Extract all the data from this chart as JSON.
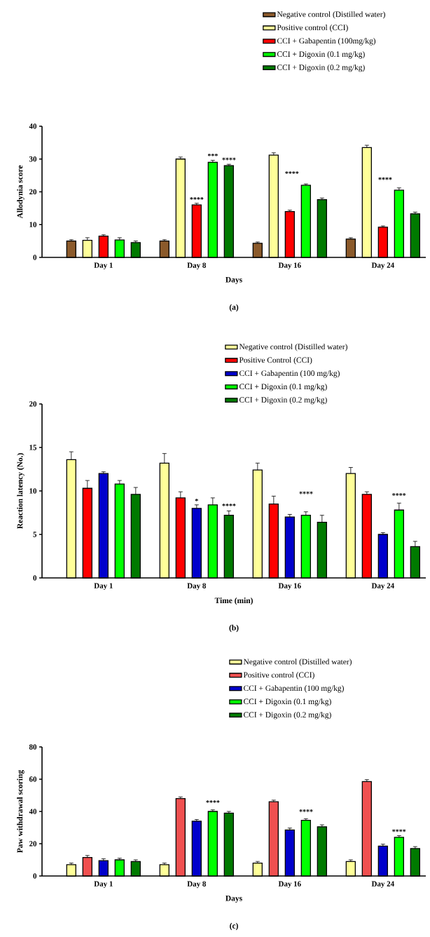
{
  "chart_data": [
    {
      "type": "bar",
      "xlabel": "Days",
      "ylabel": "Allodynia score",
      "categories": [
        "Day 1",
        "Day 8",
        "Day 16",
        "Day 24"
      ],
      "ylim": [
        0,
        40
      ],
      "yticks": [
        0,
        10,
        20,
        30,
        40
      ],
      "legend": "top right",
      "series": [
        {
          "name": "Negative control (Distilled water)",
          "color": "#8b5a2b",
          "values": [
            5,
            5,
            4.3,
            5.6
          ],
          "errors": [
            0.4,
            0.4,
            0.4,
            0.4
          ]
        },
        {
          "name": "Positive control (CCI)",
          "color": "#ffff99",
          "values": [
            5.2,
            30,
            31.2,
            33.5
          ],
          "errors": [
            0.8,
            0.6,
            0.7,
            0.7
          ]
        },
        {
          "name": "CCI + Gabapentin (100mg/kg)",
          "color": "#ff0000",
          "values": [
            6.5,
            16,
            14,
            9.2
          ],
          "errors": [
            0.4,
            0.5,
            0.4,
            0.4
          ]
        },
        {
          "name": "CCI + Digoxin (0.1 mg/kg)",
          "color": "#00ff00",
          "values": [
            5.3,
            29,
            22,
            20.5
          ],
          "errors": [
            0.7,
            0.6,
            0.4,
            0.7
          ]
        },
        {
          "name": "CCI + Digoxin (0.2 mg/kg)",
          "color": "#007a00",
          "values": [
            4.5,
            28,
            17.6,
            13.3
          ],
          "errors": [
            0.5,
            0.4,
            0.5,
            0.5
          ]
        }
      ],
      "annotations": [
        {
          "text": "****",
          "x": "Day 8",
          "y": 16
        },
        "***",
        "****",
        "****",
        "****",
        "(a)"
      ]
    },
    {
      "type": "bar",
      "xlabel": "Time (min)",
      "ylabel": "Reaction latency (No.)",
      "categories": [
        "Day 1",
        "Day 8",
        "Day 16",
        "Day 24"
      ],
      "ylim": [
        0,
        20
      ],
      "yticks": [
        0,
        5,
        10,
        15,
        20
      ],
      "legend": "top right",
      "series": [
        {
          "name": "Negative control (Distilled water)",
          "color": "#ffff99",
          "values": [
            13.6,
            13.2,
            12.4,
            12.0
          ],
          "errors": [
            0.9,
            1.1,
            0.8,
            0.7
          ]
        },
        {
          "name": "Positive Control (CCI)",
          "color": "#ff0000",
          "values": [
            10.3,
            9.2,
            8.5,
            9.6
          ],
          "errors": [
            0.9,
            0.7,
            0.9,
            0.3
          ]
        },
        {
          "name": "CCI + Gabapentin (100 mg/kg)",
          "color": "#0000cc",
          "values": [
            12.0,
            8.0,
            7.0,
            5.0
          ],
          "errors": [
            0.2,
            0.4,
            0.3,
            0.2
          ]
        },
        {
          "name": "CCI + Digoxin (0.1 mg/kg)",
          "color": "#00ff00",
          "values": [
            10.8,
            8.4,
            7.2,
            7.8
          ],
          "errors": [
            0.4,
            0.8,
            0.4,
            0.8
          ]
        },
        {
          "name": "CCI + Digoxin (0.2 mg/kg)",
          "color": "#007a00",
          "values": [
            9.6,
            7.2,
            6.4,
            3.6
          ],
          "errors": [
            0.8,
            0.5,
            0.8,
            0.6
          ]
        }
      ],
      "annotations": [
        {
          "text": "*",
          "x": "Day 8",
          "y": 8.0
        },
        "****",
        "****",
        "****",
        "(b)"
      ]
    },
    {
      "type": "bar",
      "xlabel": "Days",
      "ylabel": "Paw withdrawal scoring",
      "categories": [
        "Day 1",
        "Day 8",
        "Day 16",
        "Day 24"
      ],
      "ylim": [
        0,
        80
      ],
      "yticks": [
        0,
        20,
        40,
        60,
        80
      ],
      "legend": "top right",
      "series": [
        {
          "name": "Negative control (Distilled water)",
          "color": "#ffff99",
          "values": [
            7,
            7,
            8,
            9
          ],
          "errors": [
            1,
            1,
            1,
            1
          ]
        },
        {
          "name": "Positive control (CCI)",
          "color": "#f05050",
          "values": [
            11.5,
            48,
            46,
            58.5
          ],
          "errors": [
            1.2,
            1,
            1,
            1.2
          ]
        },
        {
          "name": "CCI + Gabapentin (100 mg/kg)",
          "color": "#0000cc",
          "values": [
            9.5,
            34,
            28.5,
            18.5
          ],
          "errors": [
            1.2,
            1,
            1.2,
            1.2
          ]
        },
        {
          "name": "CCI + Digoxin (0.1 mg/kg)",
          "color": "#00ff00",
          "values": [
            10,
            40,
            34.5,
            24
          ],
          "errors": [
            1,
            1,
            1,
            1
          ]
        },
        {
          "name": "CCI + Digoxin (0.2 mg/kg)",
          "color": "#007a00",
          "values": [
            9,
            39,
            30.5,
            17
          ],
          "errors": [
            1,
            1,
            1.2,
            1.2
          ]
        }
      ],
      "annotations": [
        "****",
        "****",
        "****",
        "(c)"
      ]
    }
  ]
}
